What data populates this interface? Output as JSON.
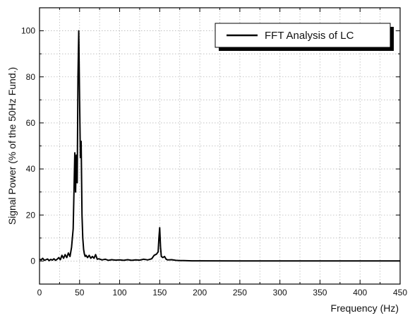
{
  "chart_data": {
    "type": "line",
    "xlabel": "Frequency (Hz)",
    "ylabel": "Signal Power (% of the 50Hz Fund.)",
    "xlim": [
      0,
      450
    ],
    "ylim": [
      -10,
      110
    ],
    "xticks": [
      0,
      50,
      100,
      150,
      200,
      250,
      300,
      350,
      400,
      450
    ],
    "yticks": [
      0,
      20,
      40,
      60,
      80,
      100
    ],
    "grid": true,
    "legend_position": "top-right",
    "line_color": "#000000",
    "series": [
      {
        "name": "FFT Analysis of LC",
        "x": [
          0,
          2,
          4,
          6,
          8,
          10,
          12,
          14,
          16,
          18,
          20,
          22,
          24,
          26,
          28,
          30,
          32,
          34,
          36,
          38,
          40,
          42,
          44,
          45,
          46,
          47,
          48,
          49,
          50,
          51,
          52,
          53,
          54,
          55,
          56,
          57,
          58,
          60,
          62,
          64,
          66,
          68,
          70,
          72,
          74,
          78,
          82,
          86,
          90,
          95,
          100,
          105,
          110,
          115,
          120,
          125,
          130,
          135,
          140,
          143,
          146,
          148,
          149,
          150,
          151,
          152,
          154,
          156,
          158,
          160,
          165,
          170,
          175,
          180,
          190,
          200,
          250,
          300,
          350,
          400,
          450
        ],
        "y": [
          0.8,
          0.5,
          1.2,
          0.3,
          0.6,
          0.9,
          0.2,
          0.7,
          0.4,
          1.0,
          0.3,
          0.8,
          1.5,
          0.6,
          2.5,
          1.2,
          2.8,
          1.5,
          3.5,
          2.0,
          6,
          14,
          47,
          30,
          46,
          34,
          80,
          100,
          70,
          45,
          52,
          20,
          10,
          5,
          3,
          2,
          2.5,
          1.5,
          2.5,
          1.2,
          2.0,
          1.2,
          2.8,
          0.8,
          1.0,
          0.5,
          0.8,
          0.3,
          0.6,
          0.4,
          0.5,
          0.3,
          0.6,
          0.3,
          0.5,
          0.4,
          0.8,
          0.5,
          1.0,
          2.5,
          3.0,
          4.0,
          10.0,
          14.5,
          6.0,
          2.0,
          1.5,
          2.0,
          0.8,
          0.5,
          0.6,
          0.3,
          0.2,
          0.2,
          0.1,
          0.1,
          0.05,
          0.05,
          0.05,
          0.05,
          0.05
        ]
      }
    ]
  }
}
